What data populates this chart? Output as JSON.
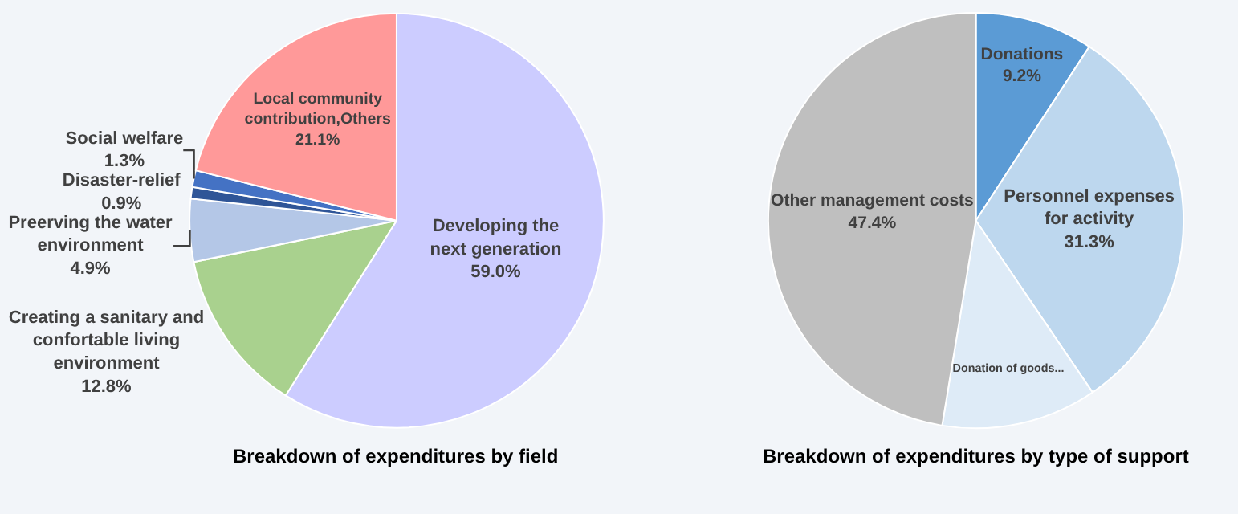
{
  "chart_data": [
    {
      "type": "pie",
      "title": "Breakdown of expenditures by field",
      "categories": [
        "Developing the next generation",
        "Creating a sanitary and confortable living environment",
        "Preerving the water environment",
        "Disaster-relief",
        "Social welfare",
        "Local community contribution,Others"
      ],
      "values": [
        59.0,
        12.8,
        4.9,
        0.9,
        1.3,
        21.1
      ],
      "value_labels": [
        "59.0%",
        "12.8%",
        "4.9%",
        "0.9%",
        "1.3%",
        "21.1%"
      ],
      "colors": [
        "#ccccff",
        "#a9d18e",
        "#b4c7e7",
        "#2f5597",
        "#4472c4",
        "#ff9999"
      ]
    },
    {
      "type": "pie",
      "title": "Breakdown of expenditures by type of support",
      "categories": [
        "Donations",
        "Personnel expenses for activity",
        "Donation of goods...",
        "Other management costs"
      ],
      "values": [
        9.2,
        31.3,
        12.1,
        47.4
      ],
      "value_labels": [
        "9.2%",
        "31.3%",
        null,
        "47.4%"
      ],
      "colors": [
        "#5b9bd5",
        "#bdd7ee",
        "#deebf7",
        "#bfbfbf"
      ]
    }
  ]
}
